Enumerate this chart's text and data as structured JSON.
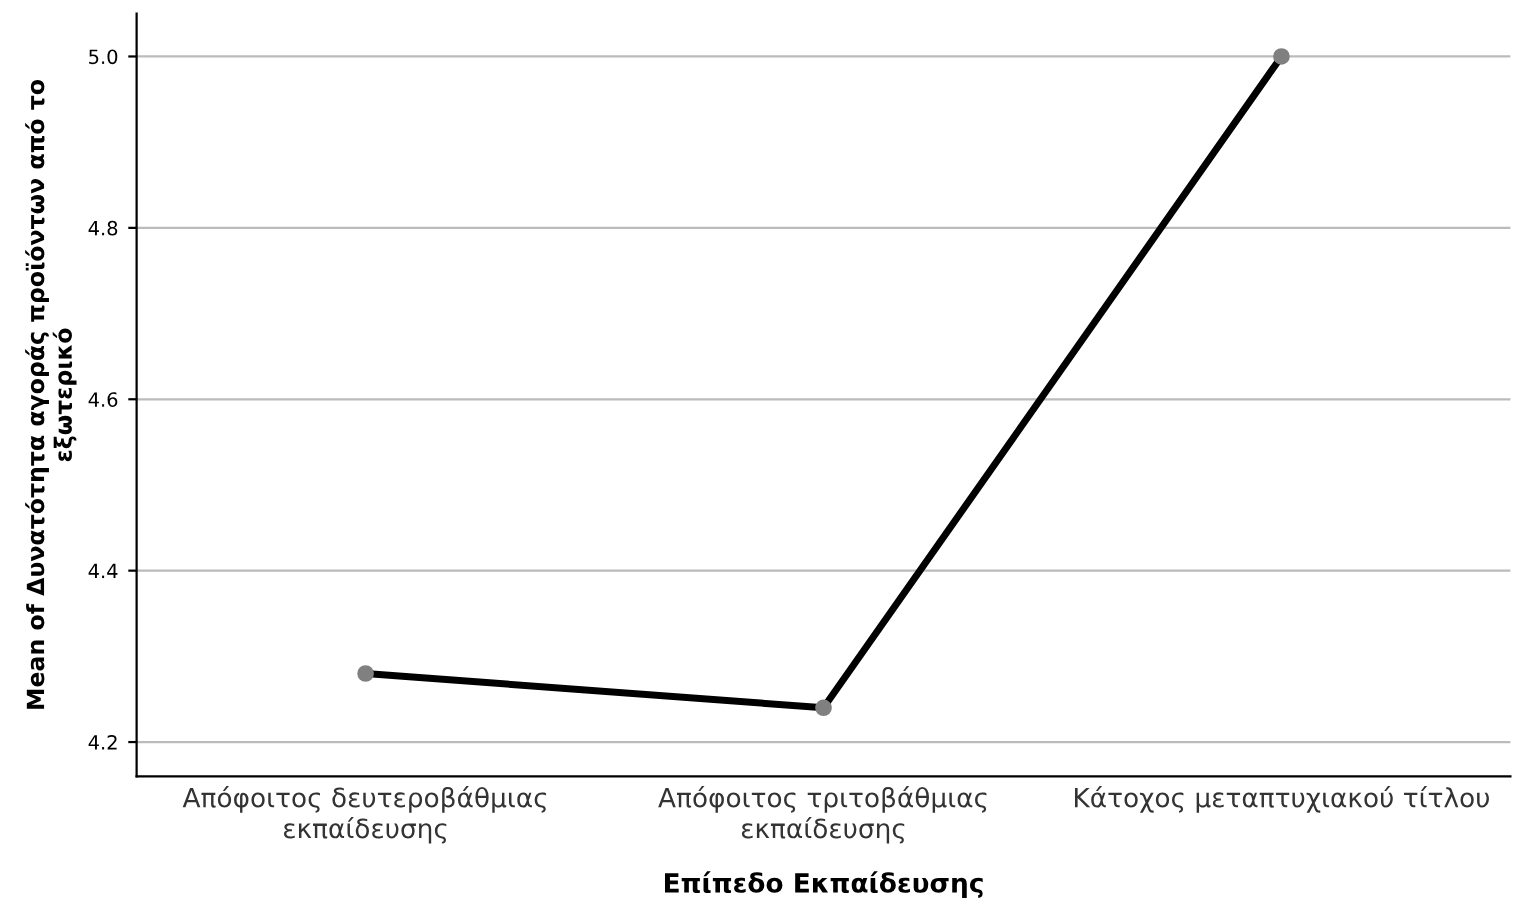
{
  "chart_data": {
    "type": "line",
    "xlabel": "Επίπεδο Εκπαίδευσης",
    "ylabel": "Mean of Δυνατότητα αγοράς προϊόντων από το\nεξωτερικό",
    "categories": [
      "Απόφοιτος δευτεροβάθμιας\nεκπαίδευσης",
      "Απόφοιτος τριτοβάθμιας\nεκπαίδευσης",
      "Κάτοχος μεταπτυχιακού τίτλου"
    ],
    "series": [
      {
        "color": "#000000",
        "values": [
          4.28,
          4.24,
          5.0
        ]
      }
    ],
    "ylim": [
      4.16,
      5.05
    ],
    "yticks": [
      {
        "value": 4.2,
        "label": "4.2"
      },
      {
        "value": 4.4,
        "label": "4.4"
      },
      {
        "value": 4.6,
        "label": "4.6"
      },
      {
        "value": 4.8,
        "label": "4.8"
      },
      {
        "value": 5.0,
        "label": "5.0"
      }
    ],
    "grid": "y",
    "marker": "circle",
    "line_style": "solid"
  }
}
